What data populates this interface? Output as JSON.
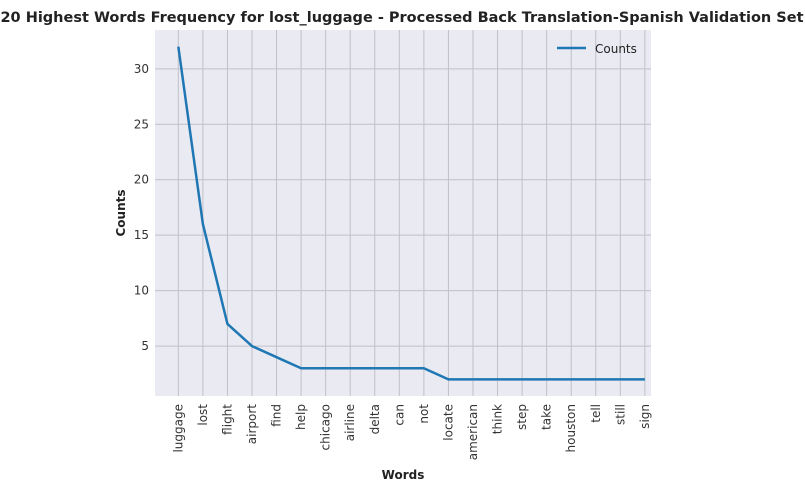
{
  "chart_data": {
    "type": "line",
    "title": "20 Highest Words Frequency for lost_luggage - Processed Back Translation-Spanish Validation Set",
    "xlabel": "Words",
    "ylabel": "Counts",
    "categories": [
      "luggage",
      "lost",
      "flight",
      "airport",
      "find",
      "help",
      "chicago",
      "airline",
      "delta",
      "can",
      "not",
      "locate",
      "american",
      "think",
      "step",
      "take",
      "houston",
      "tell",
      "still",
      "sign"
    ],
    "series": [
      {
        "name": "Counts",
        "color": "#1f77b4",
        "values": [
          32,
          16,
          7,
          5,
          4,
          3,
          3,
          3,
          3,
          3,
          3,
          2,
          2,
          2,
          2,
          2,
          2,
          2,
          2,
          2
        ]
      }
    ],
    "ylim": [
      0.5,
      33.5
    ],
    "yticks": [
      5,
      10,
      15,
      20,
      25,
      30
    ],
    "grid": true,
    "legend": "top-right",
    "colors": {
      "plot_background": "#eaeaf2",
      "grid": "#c0c0c8"
    }
  }
}
